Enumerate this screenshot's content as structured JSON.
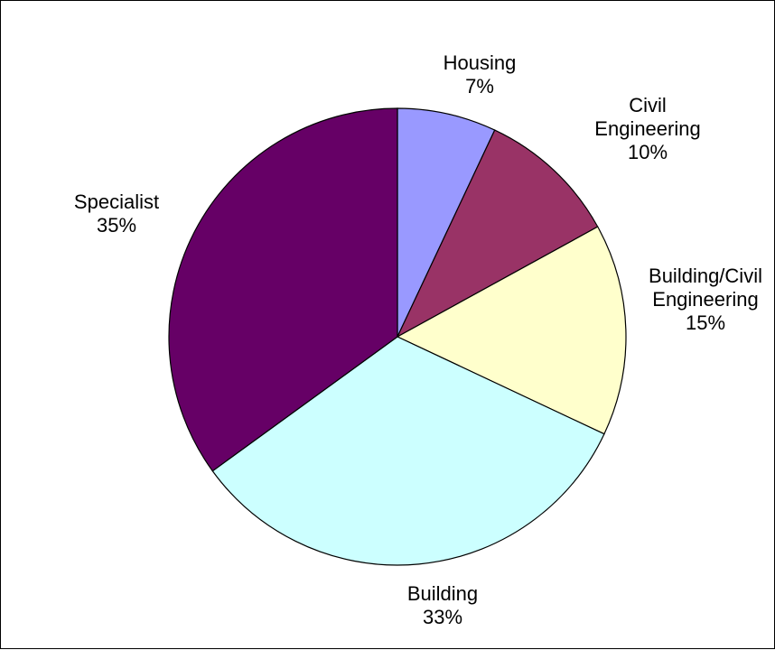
{
  "chart_data": {
    "type": "pie",
    "slices": [
      {
        "name_lines": [
          "Housing"
        ],
        "percent_label": "7%",
        "value": 7,
        "color": "#9999ff"
      },
      {
        "name_lines": [
          "Civil",
          "Engineering"
        ],
        "percent_label": "10%",
        "value": 10,
        "color": "#993366"
      },
      {
        "name_lines": [
          "Building/Civil",
          "Engineering"
        ],
        "percent_label": "15%",
        "value": 15,
        "color": "#ffffcc"
      },
      {
        "name_lines": [
          "Building"
        ],
        "percent_label": "33%",
        "value": 33,
        "color": "#ccffff"
      },
      {
        "name_lines": [
          "Specialist"
        ],
        "percent_label": "35%",
        "value": 35,
        "color": "#660066"
      }
    ],
    "start_angle": "12 o'clock",
    "direction": "clockwise",
    "slice_border_color": "#000000",
    "legend": "none"
  }
}
